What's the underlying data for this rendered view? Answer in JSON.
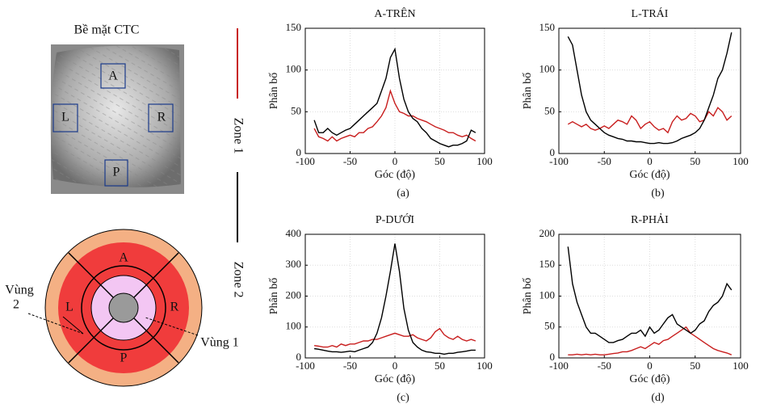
{
  "surface": {
    "title": "Bề mặt CTC",
    "regions": [
      "A",
      "L",
      "R",
      "P"
    ]
  },
  "ring": {
    "regions": [
      "A",
      "L",
      "R",
      "P"
    ],
    "zone2_label": [
      "Vùng",
      "2"
    ],
    "zone1_label": "Vùng 1"
  },
  "chart_data": [
    {
      "type": "line",
      "title": "A-TRÊN",
      "xlabel": "Góc (độ)",
      "ylabel": "Phân bố",
      "caption": "(a)",
      "x": [
        -90,
        -85,
        -80,
        -75,
        -70,
        -65,
        -60,
        -55,
        -50,
        -45,
        -40,
        -35,
        -30,
        -25,
        -20,
        -15,
        -10,
        -5,
        0,
        5,
        10,
        15,
        20,
        25,
        30,
        35,
        40,
        45,
        50,
        55,
        60,
        65,
        70,
        75,
        80,
        85,
        90
      ],
      "series": [
        {
          "name": "Zone 1",
          "color": "#c81e1e",
          "values": [
            30,
            20,
            18,
            15,
            20,
            15,
            18,
            20,
            22,
            20,
            25,
            25,
            30,
            32,
            38,
            45,
            55,
            75,
            60,
            50,
            48,
            45,
            45,
            42,
            40,
            38,
            35,
            32,
            30,
            28,
            25,
            25,
            22,
            20,
            22,
            18,
            15
          ]
        },
        {
          "name": "Zone 2",
          "color": "#000000",
          "values": [
            40,
            25,
            25,
            30,
            25,
            22,
            25,
            28,
            30,
            35,
            40,
            45,
            50,
            55,
            60,
            75,
            90,
            115,
            125,
            90,
            65,
            50,
            42,
            38,
            30,
            25,
            18,
            15,
            12,
            10,
            8,
            10,
            10,
            12,
            15,
            28,
            25
          ]
        }
      ],
      "xlim": [
        -100,
        100
      ],
      "xticks": [
        -100,
        -50,
        0,
        50,
        100
      ],
      "ylim": [
        0,
        150
      ],
      "yticks": [
        0,
        50,
        100,
        150
      ],
      "grid": true
    },
    {
      "type": "line",
      "title": "L-TRÁI",
      "xlabel": "Góc (độ)",
      "ylabel": "Phân bố",
      "caption": "(b)",
      "x": [
        -90,
        -85,
        -80,
        -75,
        -70,
        -65,
        -60,
        -55,
        -50,
        -45,
        -40,
        -35,
        -30,
        -25,
        -20,
        -15,
        -10,
        -5,
        0,
        5,
        10,
        15,
        20,
        25,
        30,
        35,
        40,
        45,
        50,
        55,
        60,
        65,
        70,
        75,
        80,
        85,
        90
      ],
      "series": [
        {
          "name": "Zone 1",
          "color": "#c81e1e",
          "values": [
            35,
            38,
            35,
            32,
            35,
            30,
            28,
            30,
            33,
            30,
            35,
            40,
            38,
            35,
            45,
            40,
            30,
            35,
            38,
            32,
            28,
            30,
            25,
            38,
            45,
            40,
            42,
            48,
            45,
            38,
            40,
            50,
            45,
            55,
            50,
            40,
            45
          ]
        },
        {
          "name": "Zone 2",
          "color": "#000000",
          "values": [
            140,
            130,
            100,
            70,
            50,
            40,
            35,
            30,
            25,
            22,
            20,
            18,
            17,
            15,
            15,
            14,
            14,
            13,
            12,
            12,
            13,
            12,
            12,
            13,
            15,
            18,
            20,
            22,
            25,
            30,
            40,
            55,
            70,
            90,
            100,
            120,
            145
          ]
        }
      ],
      "xlim": [
        -100,
        100
      ],
      "xticks": [
        -100,
        -50,
        0,
        50,
        100
      ],
      "ylim": [
        0,
        150
      ],
      "yticks": [
        0,
        50,
        100,
        150
      ],
      "grid": true
    },
    {
      "type": "line",
      "title": "P-DƯỚI",
      "xlabel": "Góc (độ)",
      "ylabel": "Phân bố",
      "caption": "(c)",
      "x": [
        -90,
        -85,
        -80,
        -75,
        -70,
        -65,
        -60,
        -55,
        -50,
        -45,
        -40,
        -35,
        -30,
        -25,
        -20,
        -15,
        -10,
        -5,
        0,
        5,
        10,
        15,
        20,
        25,
        30,
        35,
        40,
        45,
        50,
        55,
        60,
        65,
        70,
        75,
        80,
        85,
        90
      ],
      "series": [
        {
          "name": "Zone 1",
          "color": "#c81e1e",
          "values": [
            40,
            38,
            35,
            35,
            40,
            35,
            45,
            40,
            45,
            45,
            50,
            55,
            55,
            60,
            60,
            65,
            70,
            75,
            80,
            75,
            70,
            70,
            75,
            65,
            60,
            55,
            65,
            85,
            95,
            75,
            65,
            60,
            70,
            60,
            55,
            60,
            55
          ]
        },
        {
          "name": "Zone 2",
          "color": "#000000",
          "values": [
            30,
            28,
            25,
            22,
            20,
            20,
            18,
            20,
            22,
            20,
            25,
            30,
            35,
            50,
            80,
            130,
            200,
            280,
            370,
            280,
            160,
            90,
            50,
            35,
            25,
            20,
            18,
            15,
            15,
            12,
            15,
            15,
            18,
            20,
            22,
            25,
            25
          ]
        }
      ],
      "xlim": [
        -100,
        100
      ],
      "xticks": [
        -100,
        -50,
        0,
        50,
        100
      ],
      "ylim": [
        0,
        400
      ],
      "yticks": [
        0,
        100,
        200,
        300,
        400
      ],
      "grid": true
    },
    {
      "type": "line",
      "title": "R-PHẢI",
      "xlabel": "Góc (độ)",
      "ylabel": "Phân bố",
      "caption": "(d)",
      "x": [
        -90,
        -85,
        -80,
        -75,
        -70,
        -65,
        -60,
        -55,
        -50,
        -45,
        -40,
        -35,
        -30,
        -25,
        -20,
        -15,
        -10,
        -5,
        0,
        5,
        10,
        15,
        20,
        25,
        30,
        35,
        40,
        45,
        50,
        55,
        60,
        65,
        70,
        75,
        80,
        85,
        90
      ],
      "series": [
        {
          "name": "Zone 1",
          "color": "#c81e1e",
          "values": [
            5,
            5,
            6,
            5,
            6,
            5,
            6,
            5,
            5,
            6,
            7,
            8,
            10,
            10,
            12,
            15,
            18,
            15,
            20,
            25,
            22,
            28,
            30,
            35,
            40,
            45,
            50,
            40,
            35,
            30,
            25,
            20,
            15,
            12,
            10,
            8,
            5
          ]
        },
        {
          "name": "Zone 2",
          "color": "#000000",
          "values": [
            180,
            120,
            90,
            70,
            50,
            40,
            40,
            35,
            30,
            25,
            25,
            28,
            30,
            35,
            40,
            40,
            45,
            35,
            50,
            40,
            45,
            55,
            65,
            70,
            55,
            50,
            45,
            40,
            45,
            55,
            60,
            75,
            85,
            90,
            100,
            120,
            110
          ]
        }
      ],
      "xlim": [
        -100,
        100
      ],
      "xticks": [
        -100,
        -50,
        0,
        50,
        100
      ],
      "ylim": [
        0,
        200
      ],
      "yticks": [
        0,
        50,
        100,
        150,
        200
      ],
      "grid": true
    }
  ]
}
